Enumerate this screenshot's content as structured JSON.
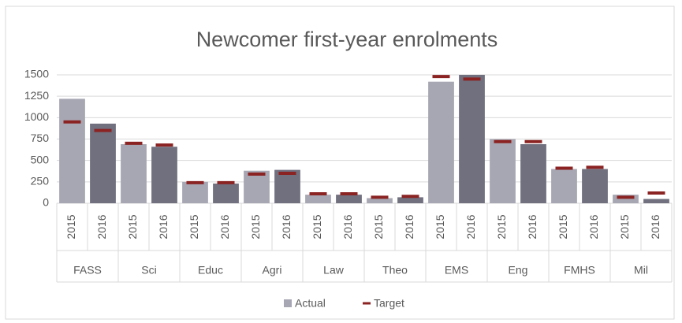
{
  "chart_data": {
    "type": "bar",
    "title": "Newcomer first-year enrolments",
    "groups": [
      "FASS",
      "Sci",
      "Educ",
      "Agri",
      "Law",
      "Theo",
      "EMS",
      "Eng",
      "FMHS",
      "Mil"
    ],
    "categories": [
      "2015",
      "2016",
      "2015",
      "2016",
      "2015",
      "2016",
      "2015",
      "2016",
      "2015",
      "2016",
      "2015",
      "2016",
      "2015",
      "2016",
      "2015",
      "2016",
      "2015",
      "2016",
      "2015",
      "2016"
    ],
    "category_colors": [
      "#a7a7b3",
      "#70707f"
    ],
    "series": [
      {
        "name": "Actual",
        "color": "#a7a7b3",
        "values": [
          1220,
          930,
          690,
          660,
          250,
          230,
          380,
          390,
          100,
          100,
          60,
          70,
          1420,
          1500,
          750,
          690,
          400,
          400,
          100,
          50
        ]
      },
      {
        "name": "Target",
        "type": "marker",
        "color": "#8b2323",
        "values": [
          950,
          850,
          700,
          680,
          240,
          240,
          340,
          350,
          110,
          110,
          70,
          80,
          1480,
          1450,
          720,
          720,
          410,
          420,
          70,
          120
        ]
      }
    ],
    "ylim": [
      0,
      1500
    ],
    "yticks": [
      0,
      250,
      500,
      750,
      1000,
      1250,
      1500
    ],
    "grid": true,
    "legend": "bottom"
  }
}
